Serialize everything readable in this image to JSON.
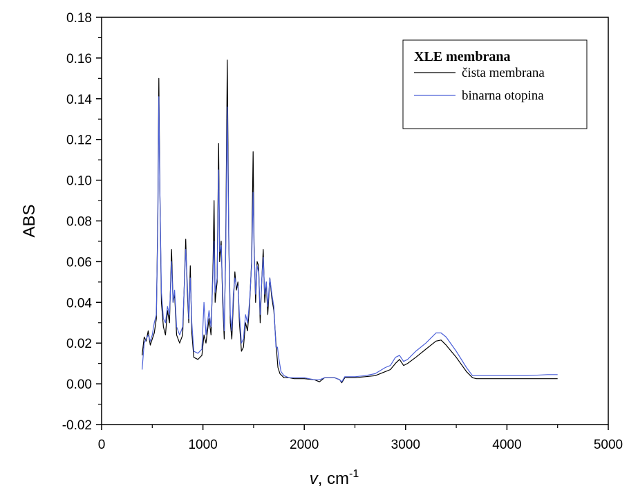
{
  "chart_data": {
    "type": "line",
    "title": "",
    "xlabel": "v, cm",
    "xlabel_italic_part": "v",
    "xlabel_unit_base": ", cm",
    "xlabel_superscript": "-1",
    "ylabel": "ABS",
    "xlim": [
      0,
      5000
    ],
    "ylim": [
      -0.02,
      0.18
    ],
    "xticks": [
      "0",
      "1000",
      "2000",
      "3000",
      "4000",
      "5000"
    ],
    "xtick_values": [
      0,
      1000,
      2000,
      3000,
      4000,
      5000
    ],
    "yticks": [
      "-0.02",
      "0.00",
      "0.02",
      "0.04",
      "0.06",
      "0.08",
      "0.10",
      "0.12",
      "0.14",
      "0.16",
      "0.18"
    ],
    "ytick_values": [
      -0.02,
      0.0,
      0.02,
      0.04,
      0.06,
      0.08,
      0.1,
      0.12,
      0.14,
      0.16,
      0.18
    ],
    "grid": false,
    "legend": {
      "title": "XLE membrana",
      "placement": "top-right"
    },
    "series": [
      {
        "name": "čista membrana",
        "color": "#000000",
        "points": [
          [
            400,
            0.014
          ],
          [
            420,
            0.023
          ],
          [
            440,
            0.021
          ],
          [
            460,
            0.026
          ],
          [
            480,
            0.019
          ],
          [
            500,
            0.022
          ],
          [
            520,
            0.025
          ],
          [
            540,
            0.032
          ],
          [
            555,
            0.085
          ],
          [
            565,
            0.15
          ],
          [
            575,
            0.095
          ],
          [
            590,
            0.04
          ],
          [
            610,
            0.028
          ],
          [
            630,
            0.024
          ],
          [
            650,
            0.036
          ],
          [
            670,
            0.03
          ],
          [
            690,
            0.066
          ],
          [
            705,
            0.04
          ],
          [
            720,
            0.044
          ],
          [
            740,
            0.024
          ],
          [
            770,
            0.02
          ],
          [
            800,
            0.024
          ],
          [
            830,
            0.071
          ],
          [
            845,
            0.046
          ],
          [
            860,
            0.03
          ],
          [
            875,
            0.058
          ],
          [
            890,
            0.025
          ],
          [
            910,
            0.013
          ],
          [
            950,
            0.012
          ],
          [
            990,
            0.014
          ],
          [
            1010,
            0.024
          ],
          [
            1030,
            0.02
          ],
          [
            1060,
            0.032
          ],
          [
            1080,
            0.024
          ],
          [
            1100,
            0.06
          ],
          [
            1110,
            0.09
          ],
          [
            1120,
            0.04
          ],
          [
            1140,
            0.05
          ],
          [
            1155,
            0.118
          ],
          [
            1165,
            0.06
          ],
          [
            1180,
            0.07
          ],
          [
            1195,
            0.04
          ],
          [
            1210,
            0.022
          ],
          [
            1225,
            0.07
          ],
          [
            1240,
            0.159
          ],
          [
            1255,
            0.07
          ],
          [
            1270,
            0.03
          ],
          [
            1285,
            0.022
          ],
          [
            1300,
            0.04
          ],
          [
            1315,
            0.055
          ],
          [
            1330,
            0.046
          ],
          [
            1345,
            0.05
          ],
          [
            1360,
            0.03
          ],
          [
            1380,
            0.016
          ],
          [
            1400,
            0.018
          ],
          [
            1420,
            0.03
          ],
          [
            1440,
            0.026
          ],
          [
            1460,
            0.038
          ],
          [
            1480,
            0.06
          ],
          [
            1495,
            0.114
          ],
          [
            1505,
            0.068
          ],
          [
            1520,
            0.04
          ],
          [
            1535,
            0.06
          ],
          [
            1550,
            0.058
          ],
          [
            1565,
            0.03
          ],
          [
            1580,
            0.05
          ],
          [
            1595,
            0.066
          ],
          [
            1610,
            0.04
          ],
          [
            1625,
            0.05
          ],
          [
            1640,
            0.034
          ],
          [
            1660,
            0.052
          ],
          [
            1680,
            0.042
          ],
          [
            1700,
            0.036
          ],
          [
            1720,
            0.02
          ],
          [
            1740,
            0.008
          ],
          [
            1760,
            0.005
          ],
          [
            1800,
            0.003
          ],
          [
            1850,
            0.003
          ],
          [
            1900,
            0.0025
          ],
          [
            2000,
            0.0025
          ],
          [
            2100,
            0.002
          ],
          [
            2150,
            0.001
          ],
          [
            2200,
            0.003
          ],
          [
            2300,
            0.003
          ],
          [
            2350,
            0.002
          ],
          [
            2370,
            0.0005
          ],
          [
            2400,
            0.003
          ],
          [
            2500,
            0.003
          ],
          [
            2600,
            0.0035
          ],
          [
            2700,
            0.004
          ],
          [
            2800,
            0.006
          ],
          [
            2850,
            0.007
          ],
          [
            2900,
            0.01
          ],
          [
            2940,
            0.012
          ],
          [
            2980,
            0.009
          ],
          [
            3020,
            0.01
          ],
          [
            3100,
            0.013
          ],
          [
            3200,
            0.017
          ],
          [
            3300,
            0.021
          ],
          [
            3350,
            0.0215
          ],
          [
            3400,
            0.019
          ],
          [
            3500,
            0.013
          ],
          [
            3600,
            0.006
          ],
          [
            3660,
            0.003
          ],
          [
            3700,
            0.0025
          ],
          [
            3800,
            0.0025
          ],
          [
            4000,
            0.0025
          ],
          [
            4200,
            0.0025
          ],
          [
            4400,
            0.0025
          ],
          [
            4500,
            0.0025
          ]
        ]
      },
      {
        "name": "binarna otopina",
        "color": "#4a5fd8",
        "points": [
          [
            400,
            0.007
          ],
          [
            420,
            0.02
          ],
          [
            440,
            0.022
          ],
          [
            460,
            0.024
          ],
          [
            480,
            0.021
          ],
          [
            500,
            0.024
          ],
          [
            520,
            0.03
          ],
          [
            540,
            0.034
          ],
          [
            555,
            0.08
          ],
          [
            565,
            0.141
          ],
          [
            575,
            0.095
          ],
          [
            590,
            0.045
          ],
          [
            610,
            0.032
          ],
          [
            630,
            0.03
          ],
          [
            650,
            0.038
          ],
          [
            670,
            0.034
          ],
          [
            690,
            0.06
          ],
          [
            705,
            0.04
          ],
          [
            720,
            0.046
          ],
          [
            740,
            0.028
          ],
          [
            770,
            0.024
          ],
          [
            800,
            0.028
          ],
          [
            830,
            0.066
          ],
          [
            845,
            0.05
          ],
          [
            860,
            0.032
          ],
          [
            875,
            0.052
          ],
          [
            890,
            0.03
          ],
          [
            910,
            0.016
          ],
          [
            950,
            0.015
          ],
          [
            990,
            0.017
          ],
          [
            1010,
            0.04
          ],
          [
            1030,
            0.024
          ],
          [
            1060,
            0.036
          ],
          [
            1080,
            0.028
          ],
          [
            1100,
            0.055
          ],
          [
            1110,
            0.07
          ],
          [
            1120,
            0.045
          ],
          [
            1140,
            0.052
          ],
          [
            1155,
            0.105
          ],
          [
            1165,
            0.065
          ],
          [
            1180,
            0.068
          ],
          [
            1195,
            0.045
          ],
          [
            1210,
            0.026
          ],
          [
            1225,
            0.065
          ],
          [
            1240,
            0.136
          ],
          [
            1255,
            0.072
          ],
          [
            1270,
            0.034
          ],
          [
            1285,
            0.026
          ],
          [
            1300,
            0.044
          ],
          [
            1315,
            0.052
          ],
          [
            1330,
            0.048
          ],
          [
            1345,
            0.048
          ],
          [
            1360,
            0.034
          ],
          [
            1380,
            0.02
          ],
          [
            1400,
            0.022
          ],
          [
            1420,
            0.034
          ],
          [
            1440,
            0.03
          ],
          [
            1460,
            0.04
          ],
          [
            1480,
            0.058
          ],
          [
            1495,
            0.094
          ],
          [
            1505,
            0.066
          ],
          [
            1520,
            0.044
          ],
          [
            1535,
            0.058
          ],
          [
            1550,
            0.055
          ],
          [
            1565,
            0.034
          ],
          [
            1580,
            0.05
          ],
          [
            1595,
            0.062
          ],
          [
            1610,
            0.044
          ],
          [
            1625,
            0.05
          ],
          [
            1640,
            0.038
          ],
          [
            1660,
            0.052
          ],
          [
            1680,
            0.044
          ],
          [
            1700,
            0.038
          ],
          [
            1720,
            0.018
          ],
          [
            1735,
            0.018
          ],
          [
            1750,
            0.012
          ],
          [
            1770,
            0.006
          ],
          [
            1800,
            0.004
          ],
          [
            1850,
            0.003
          ],
          [
            1900,
            0.003
          ],
          [
            2000,
            0.003
          ],
          [
            2100,
            0.002
          ],
          [
            2150,
            0.002
          ],
          [
            2200,
            0.003
          ],
          [
            2300,
            0.003
          ],
          [
            2350,
            0.002
          ],
          [
            2370,
            0.001
          ],
          [
            2400,
            0.0035
          ],
          [
            2500,
            0.0035
          ],
          [
            2600,
            0.004
          ],
          [
            2700,
            0.005
          ],
          [
            2800,
            0.008
          ],
          [
            2850,
            0.009
          ],
          [
            2900,
            0.013
          ],
          [
            2940,
            0.014
          ],
          [
            2980,
            0.011
          ],
          [
            3020,
            0.012
          ],
          [
            3100,
            0.016
          ],
          [
            3200,
            0.02
          ],
          [
            3300,
            0.025
          ],
          [
            3350,
            0.025
          ],
          [
            3400,
            0.023
          ],
          [
            3500,
            0.016
          ],
          [
            3600,
            0.008
          ],
          [
            3660,
            0.004
          ],
          [
            3700,
            0.004
          ],
          [
            3800,
            0.004
          ],
          [
            4000,
            0.004
          ],
          [
            4200,
            0.004
          ],
          [
            4400,
            0.0045
          ],
          [
            4500,
            0.0045
          ]
        ]
      }
    ]
  }
}
